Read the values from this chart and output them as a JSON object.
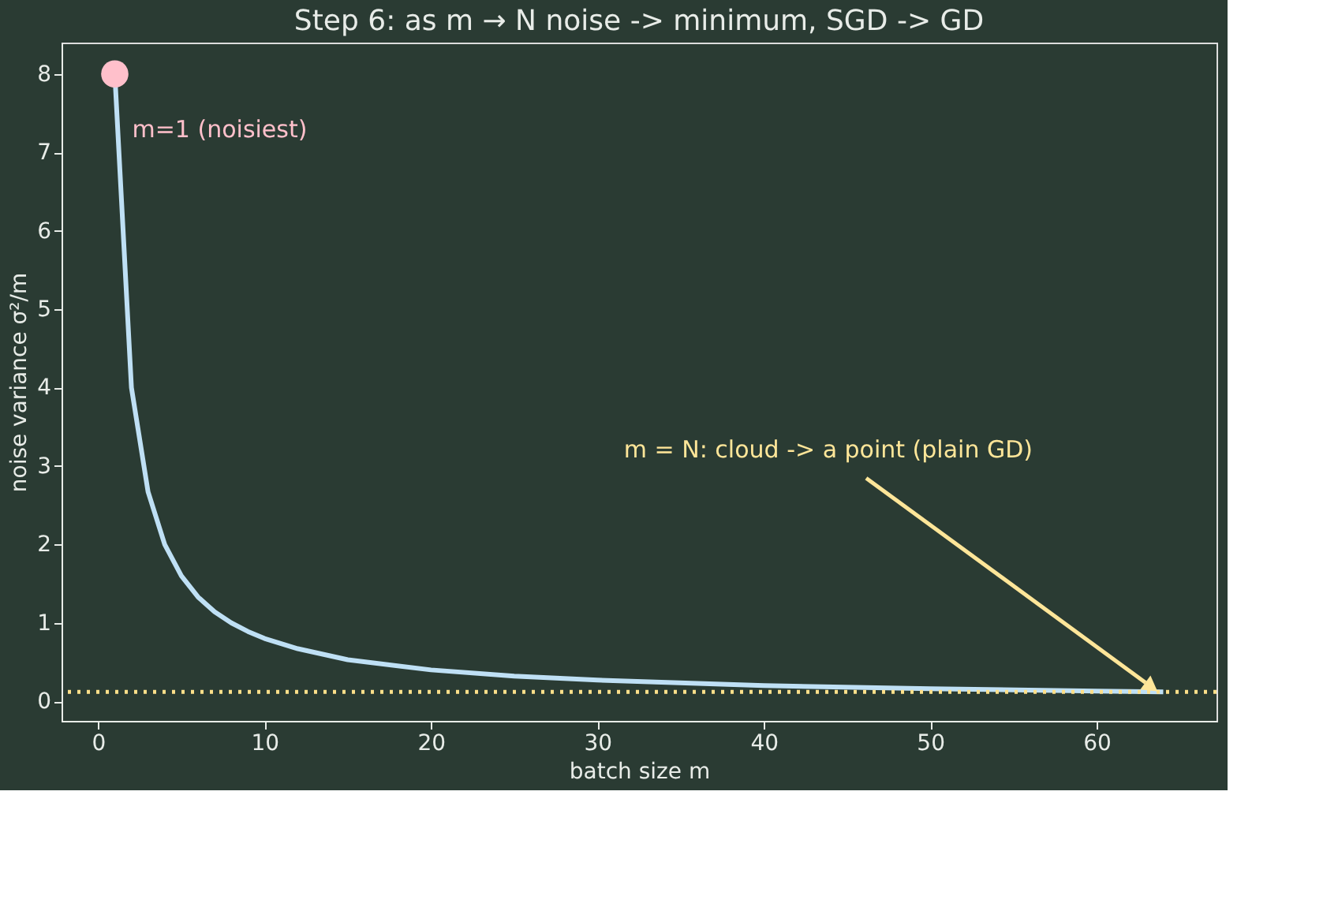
{
  "chart_data": {
    "type": "line",
    "title": "Step 6: as m → N noise -> minimum, SGD -> GD",
    "xlabel": "batch size m",
    "ylabel": "noise variance σ²/m",
    "series": [
      {
        "type": "line",
        "color": "#bfe0f5",
        "x": [
          1,
          2,
          3,
          4,
          5,
          6,
          7,
          8,
          9,
          10,
          12,
          15,
          20,
          25,
          30,
          40,
          50,
          60,
          64
        ],
        "values": [
          8,
          4,
          2.67,
          2,
          1.6,
          1.33,
          1.14,
          1,
          0.89,
          0.8,
          0.67,
          0.53,
          0.4,
          0.32,
          0.27,
          0.2,
          0.16,
          0.13,
          0.12
        ]
      },
      {
        "type": "scatter",
        "color": "#ffc0cb",
        "x": [
          1
        ],
        "values": [
          8
        ]
      }
    ],
    "ref_lines": [
      {
        "axis": "y",
        "value": 0.12,
        "color": "#ffe08a",
        "line_style": "dotted"
      }
    ],
    "annotations": [
      {
        "text": "m=1 (noisiest)",
        "x": 1,
        "y": 8
      },
      {
        "text": "m = N: cloud -> a point (plain GD)",
        "x": 63.5,
        "y": 0.15
      }
    ],
    "xlim": [
      -2.2,
      67.2
    ],
    "ylim": [
      -0.25,
      8.4
    ],
    "xticks": [
      0,
      10,
      20,
      30,
      40,
      50,
      60
    ],
    "yticks": [
      0,
      1,
      2,
      3,
      4,
      5,
      6,
      7,
      8
    ],
    "grid": false,
    "line_style": "solid"
  }
}
